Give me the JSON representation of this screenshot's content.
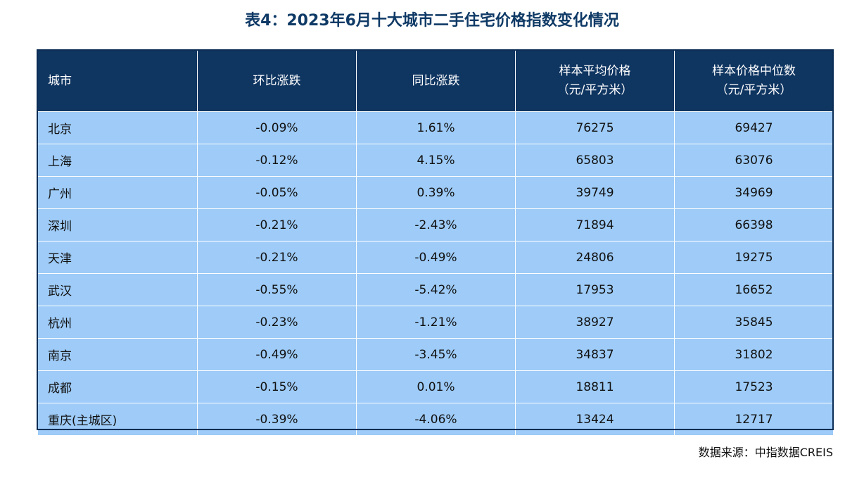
{
  "title": "表4：2023年6月十大城市二手住宅价格指数变化情况",
  "table": {
    "headers": [
      {
        "line1": "城市",
        "line2": ""
      },
      {
        "line1": "环比涨跌",
        "line2": ""
      },
      {
        "line1": "同比涨跌",
        "line2": ""
      },
      {
        "line1": "样本平均价格",
        "line2": "（元/平方米）"
      },
      {
        "line1": "样本价格中位数",
        "line2": "（元/平方米）"
      }
    ],
    "rows": [
      [
        "北京",
        "-0.09%",
        "1.61%",
        "76275",
        "69427"
      ],
      [
        "上海",
        "-0.12%",
        "4.15%",
        "65803",
        "63076"
      ],
      [
        "广州",
        "-0.05%",
        "0.39%",
        "39749",
        "34969"
      ],
      [
        "深圳",
        "-0.21%",
        "-2.43%",
        "71894",
        "66398"
      ],
      [
        "天津",
        "-0.21%",
        "-0.49%",
        "24806",
        "19275"
      ],
      [
        "武汉",
        "-0.55%",
        "-5.42%",
        "17953",
        "16652"
      ],
      [
        "杭州",
        "-0.23%",
        "-1.21%",
        "38927",
        "35845"
      ],
      [
        "南京",
        "-0.49%",
        "-3.45%",
        "34837",
        "31802"
      ],
      [
        "成都",
        "-0.15%",
        "0.01%",
        "18811",
        "17523"
      ],
      [
        "重庆(主城区)",
        "-0.39%",
        "-4.06%",
        "13424",
        "12717"
      ]
    ]
  },
  "source": "数据来源：中指数据CREIS",
  "colors": {
    "header_bg": "#0f3561",
    "cell_bg": "#9ecbf7",
    "title": "#0f3a66"
  }
}
